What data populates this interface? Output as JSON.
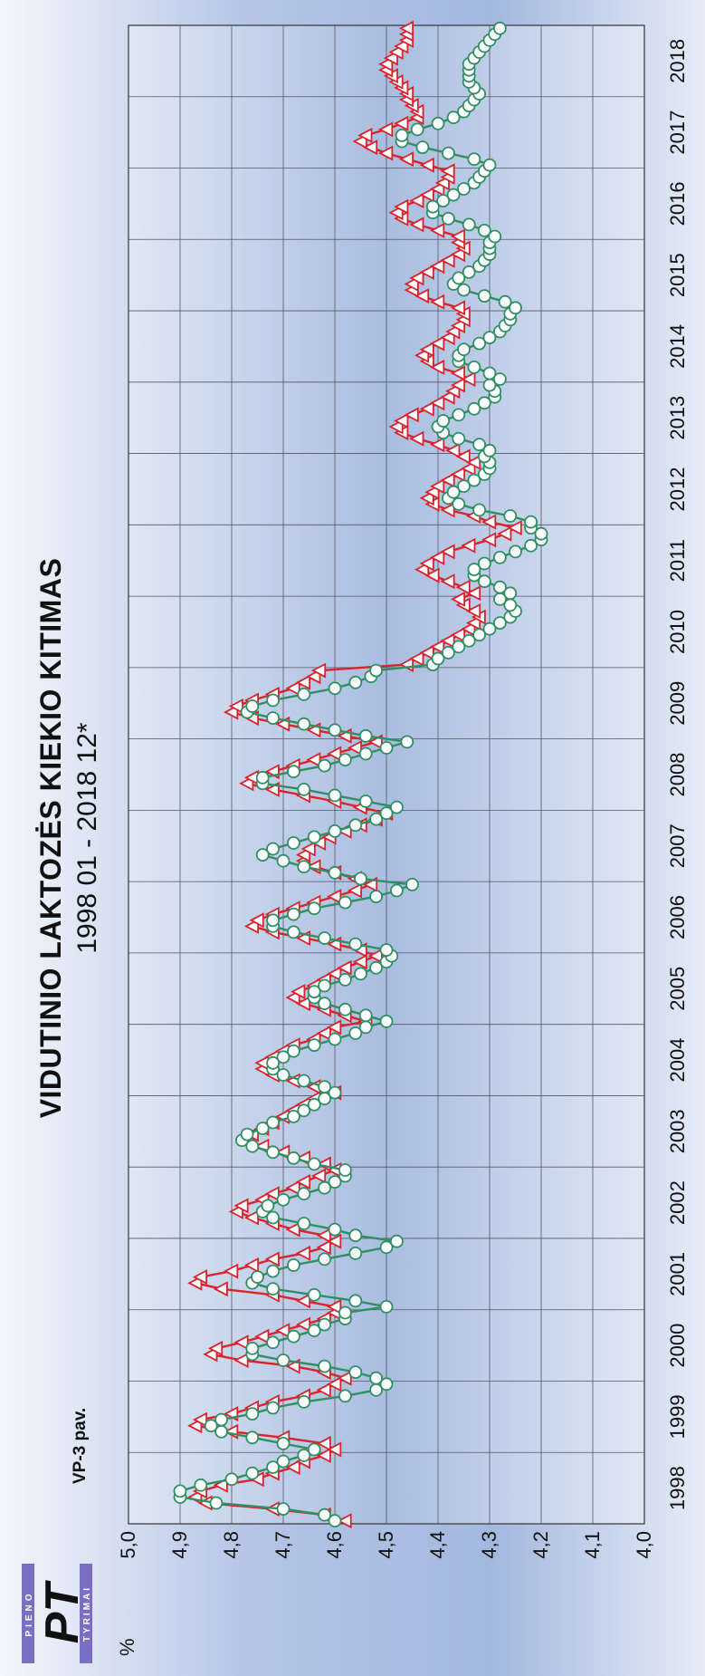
{
  "figure_label": "VP-3 pav.",
  "logo": {
    "text_top": "PIENO",
    "text_main": "PT",
    "text_bottom": "TYRIMAI",
    "colors": {
      "bar": "#7a6fc4",
      "letters": "#111111"
    }
  },
  "colors": {
    "series_a": "#d9232d",
    "series_b": "#2f8f63",
    "plot_bg_center": "#a9bde0",
    "plot_bg_edge": "#dfe7f4",
    "grid": "#555566"
  },
  "chart_data": {
    "type": "line",
    "title": "VIDUTINIO LAKTOZĖS KIEKIO KITIMAS",
    "subtitle": "1998 01 - 2018 12*",
    "ylabel": "%",
    "xlabel": "",
    "ylim": [
      4.0,
      5.0
    ],
    "y_ticks": [
      "4,0",
      "4,1",
      "4,2",
      "4,3",
      "4,4",
      "4,5",
      "4,6",
      "4,7",
      "4,8",
      "4,9",
      "5,0"
    ],
    "year_labels": [
      "1998",
      "1999",
      "2000",
      "2001",
      "2002",
      "2003",
      "2004",
      "2005",
      "2006",
      "2007",
      "2008",
      "2009",
      "2010",
      "2011",
      "2012",
      "2013",
      "2014",
      "2015",
      "2016",
      "2017",
      "2018"
    ],
    "grid": true,
    "legend": "none",
    "points_per_year": 12,
    "series": [
      {
        "marker": "triangle",
        "color": "#d9232d",
        "values": [
          [
            4.58,
            4.62,
            4.72,
            4.85,
            4.87,
            4.86,
            4.82,
            4.75,
            4.72,
            4.68,
            4.66,
            4.62
          ],
          [
            4.6,
            4.62,
            4.7,
            4.8,
            4.87,
            4.86,
            4.8,
            4.76,
            4.72,
            4.66,
            4.62,
            4.6
          ],
          [
            4.58,
            4.62,
            4.68,
            4.78,
            4.84,
            4.83,
            4.78,
            4.74,
            4.7,
            4.66,
            4.62,
            4.6
          ],
          [
            4.6,
            4.66,
            4.72,
            4.82,
            4.87,
            4.86,
            4.8,
            4.76,
            4.72,
            4.66,
            4.62,
            4.6
          ],
          [
            4.62,
            4.68,
            4.72,
            4.76,
            4.79,
            4.78,
            4.74,
            4.72,
            4.68,
            4.66,
            4.63,
            4.6
          ],
          [
            4.62,
            4.66,
            4.7,
            4.74,
            4.77,
            4.76,
            4.74,
            4.72,
            4.7,
            4.68,
            4.66,
            4.64
          ],
          [
            4.6,
            4.64,
            4.68,
            4.72,
            4.74,
            4.74,
            4.72,
            4.7,
            4.68,
            4.64,
            4.62,
            4.6
          ],
          [
            4.54,
            4.58,
            4.62,
            4.66,
            4.68,
            4.67,
            4.64,
            4.62,
            4.6,
            4.58,
            4.55,
            4.52
          ],
          [
            4.55,
            4.6,
            4.66,
            4.72,
            4.76,
            4.75,
            4.72,
            4.68,
            4.64,
            4.6,
            4.56,
            4.53
          ],
          [
            4.56,
            4.6,
            4.64,
            4.66,
            4.66,
            4.65,
            4.63,
            4.61,
            4.58,
            4.55,
            4.52,
            4.5
          ],
          [
            4.55,
            4.6,
            4.66,
            4.72,
            4.77,
            4.76,
            4.72,
            4.68,
            4.64,
            4.6,
            4.56,
            4.52
          ],
          [
            4.58,
            4.64,
            4.7,
            4.76,
            4.8,
            4.79,
            4.76,
            4.72,
            4.68,
            4.66,
            4.64,
            4.63
          ],
          [
            4.46,
            4.44,
            4.42,
            4.4,
            4.38,
            4.36,
            4.34,
            4.33,
            4.32,
            4.33,
            4.35,
            4.36
          ],
          [
            4.33,
            4.35,
            4.38,
            4.41,
            4.43,
            4.42,
            4.4,
            4.38,
            4.34,
            4.3,
            4.27,
            4.25
          ],
          [
            4.3,
            4.33,
            4.38,
            4.41,
            4.42,
            4.41,
            4.4,
            4.38,
            4.36,
            4.34,
            4.33,
            4.35
          ],
          [
            4.37,
            4.4,
            4.44,
            4.47,
            4.48,
            4.47,
            4.45,
            4.42,
            4.4,
            4.38,
            4.37,
            4.36
          ],
          [
            4.34,
            4.36,
            4.4,
            4.42,
            4.43,
            4.42,
            4.4,
            4.38,
            4.37,
            4.36,
            4.35,
            4.35
          ],
          [
            4.36,
            4.4,
            4.43,
            4.45,
            4.45,
            4.44,
            4.42,
            4.4,
            4.38,
            4.36,
            4.35,
            4.36
          ],
          [
            4.36,
            4.4,
            4.44,
            4.47,
            4.48,
            4.47,
            4.44,
            4.42,
            4.4,
            4.39,
            4.38,
            4.38
          ],
          [
            4.42,
            4.46,
            4.5,
            4.53,
            4.55,
            4.54,
            4.5,
            4.47,
            4.44,
            4.44,
            4.45,
            4.46
          ],
          [
            4.46,
            4.47,
            4.48,
            4.49,
            4.5,
            4.5,
            4.49,
            4.48,
            4.47,
            4.46,
            4.46,
            4.46
          ]
        ]
      },
      {
        "marker": "circle",
        "color": "#2f8f63",
        "values": [
          [
            4.6,
            4.62,
            4.7,
            4.83,
            4.9,
            4.9,
            4.86,
            4.8,
            4.76,
            4.72,
            4.7,
            4.66
          ],
          [
            4.64,
            4.7,
            4.76,
            4.82,
            4.84,
            4.82,
            4.76,
            4.72,
            4.66,
            4.58,
            4.52,
            4.5
          ],
          [
            4.52,
            4.56,
            4.62,
            4.7,
            4.76,
            4.76,
            4.72,
            4.68,
            4.64,
            4.62,
            4.58,
            4.58
          ],
          [
            4.5,
            4.56,
            4.64,
            4.72,
            4.76,
            4.75,
            4.72,
            4.68,
            4.62,
            4.56,
            4.5,
            4.48
          ],
          [
            4.56,
            4.6,
            4.66,
            4.72,
            4.74,
            4.73,
            4.7,
            4.66,
            4.62,
            4.6,
            4.58,
            4.58
          ],
          [
            4.64,
            4.68,
            4.72,
            4.76,
            4.78,
            4.77,
            4.74,
            4.72,
            4.68,
            4.66,
            4.64,
            4.62
          ],
          [
            4.6,
            4.62,
            4.66,
            4.7,
            4.72,
            4.72,
            4.7,
            4.68,
            4.64,
            4.6,
            4.56,
            4.54
          ],
          [
            4.5,
            4.54,
            4.58,
            4.62,
            4.64,
            4.64,
            4.62,
            4.58,
            4.55,
            4.52,
            4.5,
            4.49
          ],
          [
            4.5,
            4.56,
            4.62,
            4.68,
            4.72,
            4.72,
            4.68,
            4.64,
            4.58,
            4.52,
            4.48,
            4.45
          ],
          [
            4.55,
            4.6,
            4.66,
            4.7,
            4.74,
            4.72,
            4.68,
            4.64,
            4.6,
            4.56,
            4.52,
            4.5
          ],
          [
            4.48,
            4.54,
            4.6,
            4.66,
            4.74,
            4.74,
            4.68,
            4.62,
            4.58,
            4.54,
            4.5,
            4.46
          ],
          [
            4.54,
            4.6,
            4.66,
            4.72,
            4.77,
            4.76,
            4.72,
            4.66,
            4.6,
            4.56,
            4.53,
            4.52
          ],
          [
            4.41,
            4.4,
            4.38,
            4.36,
            4.34,
            4.32,
            4.3,
            4.28,
            4.26,
            4.25,
            4.26,
            4.28
          ],
          [
            4.26,
            4.28,
            4.31,
            4.33,
            4.33,
            4.31,
            4.28,
            4.25,
            4.22,
            4.2,
            4.2,
            4.22
          ],
          [
            4.22,
            4.26,
            4.32,
            4.36,
            4.38,
            4.37,
            4.35,
            4.33,
            4.31,
            4.3,
            4.3,
            4.31
          ],
          [
            4.3,
            4.32,
            4.36,
            4.39,
            4.4,
            4.39,
            4.36,
            4.33,
            4.31,
            4.29,
            4.29,
            4.3
          ],
          [
            4.28,
            4.3,
            4.33,
            4.36,
            4.36,
            4.35,
            4.32,
            4.3,
            4.28,
            4.27,
            4.26,
            4.26
          ],
          [
            4.25,
            4.27,
            4.31,
            4.35,
            4.37,
            4.36,
            4.34,
            4.32,
            4.31,
            4.3,
            4.3,
            4.3
          ],
          [
            4.29,
            4.31,
            4.34,
            4.38,
            4.41,
            4.41,
            4.39,
            4.37,
            4.35,
            4.33,
            4.32,
            4.31
          ],
          [
            4.3,
            4.33,
            4.38,
            4.43,
            4.47,
            4.47,
            4.44,
            4.4,
            4.37,
            4.35,
            4.34,
            4.33
          ],
          [
            4.32,
            4.33,
            4.34,
            4.34,
            4.34,
            4.34,
            4.33,
            4.32,
            4.31,
            4.3,
            4.29,
            4.28
          ]
        ]
      }
    ]
  }
}
